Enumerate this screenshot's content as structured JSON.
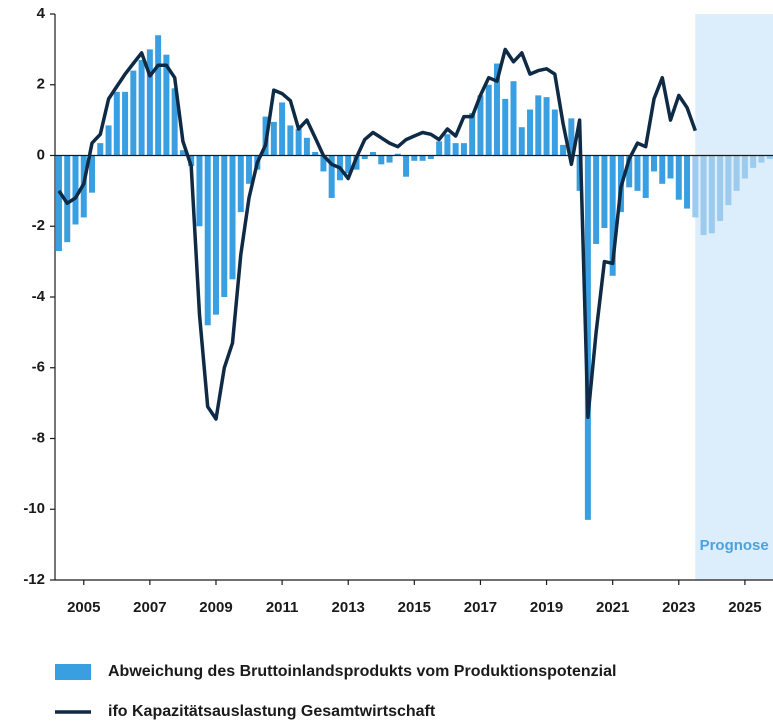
{
  "chart_data": {
    "type": "bar",
    "x": [
      2004.25,
      2004.5,
      2004.75,
      2005,
      2005.25,
      2005.5,
      2005.75,
      2006,
      2006.25,
      2006.5,
      2006.75,
      2007,
      2007.25,
      2007.5,
      2007.75,
      2008,
      2008.25,
      2008.5,
      2008.75,
      2009,
      2009.25,
      2009.5,
      2009.75,
      2010,
      2010.25,
      2010.5,
      2010.75,
      2011,
      2011.25,
      2011.5,
      2011.75,
      2012,
      2012.25,
      2012.5,
      2012.75,
      2013,
      2013.25,
      2013.5,
      2013.75,
      2014,
      2014.25,
      2014.5,
      2014.75,
      2015,
      2015.25,
      2015.5,
      2015.75,
      2016,
      2016.25,
      2016.5,
      2016.75,
      2017,
      2017.25,
      2017.5,
      2017.75,
      2018,
      2018.25,
      2018.5,
      2018.75,
      2019,
      2019.25,
      2019.5,
      2019.75,
      2020,
      2020.25,
      2020.5,
      2020.75,
      2021,
      2021.25,
      2021.5,
      2021.75,
      2022,
      2022.25,
      2022.5,
      2022.75,
      2023,
      2023.25,
      2023.5,
      2023.75,
      2024,
      2024.25,
      2024.5,
      2024.75,
      2025,
      2025.25,
      2025.5,
      2025.75
    ],
    "series": [
      {
        "name": "Abweichung des Bruttoinlandsprodukts vom Produktionspotenzial",
        "type": "bar",
        "color": "#3a9fe0",
        "forecast_color": "#9ccbee",
        "values": [
          -2.7,
          -2.45,
          -1.95,
          -1.75,
          -1.05,
          0.35,
          0.85,
          1.8,
          1.8,
          2.4,
          2.7,
          3.0,
          3.4,
          2.85,
          1.9,
          0.15,
          -0.3,
          -2.0,
          -4.8,
          -4.5,
          -4.0,
          -3.5,
          -1.6,
          -0.8,
          -0.4,
          1.1,
          0.95,
          1.5,
          0.85,
          0.75,
          0.5,
          0.1,
          -0.45,
          -1.2,
          -0.7,
          -0.5,
          -0.4,
          -0.1,
          0.1,
          -0.25,
          -0.2,
          0.05,
          -0.6,
          -0.15,
          -0.15,
          -0.1,
          0.4,
          0.6,
          0.35,
          0.35,
          1.2,
          1.7,
          2.0,
          2.6,
          1.6,
          2.1,
          0.8,
          1.3,
          1.7,
          1.65,
          1.3,
          0.3,
          1.05,
          -1.0,
          -10.3,
          -2.5,
          -2.05,
          -3.4,
          -1.6,
          -0.9,
          -1.0,
          -1.2,
          -0.45,
          -0.8,
          -0.65,
          -1.25,
          -1.5,
          -1.75,
          -2.25,
          -2.2,
          -1.85,
          -1.4,
          -1.0,
          -0.65,
          -0.35,
          -0.2,
          -0.1
        ]
      },
      {
        "name": "ifo Kapazitätsauslastung Gesamtwirtschaft",
        "type": "line",
        "color": "#0e2a45",
        "values": [
          -1.0,
          -1.35,
          -1.2,
          -0.8,
          0.35,
          0.6,
          1.6,
          1.95,
          2.3,
          2.6,
          2.9,
          2.25,
          2.55,
          2.55,
          2.2,
          0.4,
          -0.3,
          -4.5,
          -7.1,
          -7.45,
          -6.0,
          -5.3,
          -2.8,
          -1.2,
          -0.2,
          0.3,
          1.85,
          1.75,
          1.55,
          0.75,
          1.0,
          0.5,
          0.0,
          -0.25,
          -0.35,
          -0.65,
          -0.05,
          0.45,
          0.65,
          0.5,
          0.35,
          0.25,
          0.45,
          0.55,
          0.65,
          0.6,
          0.45,
          0.75,
          0.55,
          1.1,
          1.1,
          1.7,
          2.2,
          2.1,
          3.0,
          2.65,
          2.9,
          2.3,
          2.4,
          2.45,
          2.3,
          0.9,
          -0.25,
          1.0,
          -7.4,
          -5.0,
          -3.0,
          -3.05,
          -0.9,
          -0.1,
          0.35,
          0.25,
          1.6,
          2.2,
          1.0,
          1.7,
          1.35,
          0.7,
          null,
          null,
          null,
          null,
          null,
          null,
          null,
          null,
          null
        ]
      }
    ],
    "forecast_start": 2023.5,
    "forecast_label": "Prognose",
    "forecast_color": "#dcedfb",
    "xlim": [
      2004.13,
      2025.85
    ],
    "xticks": [
      2005,
      2007,
      2009,
      2011,
      2013,
      2015,
      2017,
      2019,
      2021,
      2023,
      2025
    ],
    "ylim": [
      -12,
      4
    ],
    "yticks": [
      4,
      2,
      0,
      -2,
      -4,
      -6,
      -8,
      -10,
      -12
    ]
  }
}
